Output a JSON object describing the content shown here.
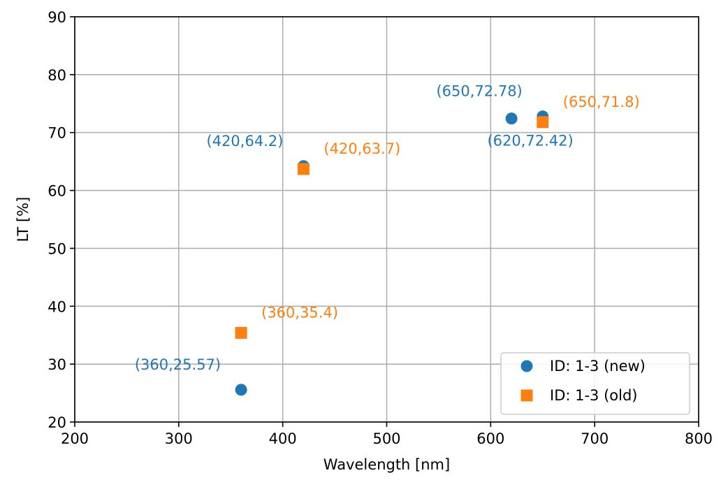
{
  "chart_data": {
    "type": "scatter",
    "xlabel": "Wavelength [nm]",
    "ylabel": "LT [%]",
    "xlim": [
      200,
      800
    ],
    "ylim": [
      20,
      90
    ],
    "xticks": [
      200,
      300,
      400,
      500,
      600,
      700,
      800
    ],
    "yticks": [
      20,
      30,
      40,
      50,
      60,
      70,
      80,
      90
    ],
    "grid": true,
    "legend_position": "bottom-right",
    "series": [
      {
        "name": "ID: 1-3 (new)",
        "marker": "circle",
        "color": "#1f77b4",
        "points": [
          {
            "x": 360,
            "y": 25.57
          },
          {
            "x": 420,
            "y": 64.2
          },
          {
            "x": 620,
            "y": 72.42
          },
          {
            "x": 650,
            "y": 72.78
          }
        ]
      },
      {
        "name": "ID: 1-3 (old)",
        "marker": "square",
        "color": "#ff7f0e",
        "points": [
          {
            "x": 360,
            "y": 35.4
          },
          {
            "x": 420,
            "y": 63.7
          },
          {
            "x": 650,
            "y": 71.8
          }
        ]
      }
    ],
    "annotations": [
      {
        "text": "(360,25.57)",
        "series": 0,
        "x": 360,
        "y": 25.57,
        "placement": "upper-left"
      },
      {
        "text": "(420,64.2)",
        "series": 0,
        "x": 420,
        "y": 64.2,
        "placement": "upper-left"
      },
      {
        "text": "(620,72.42)",
        "series": 0,
        "x": 620,
        "y": 72.42,
        "placement": "below"
      },
      {
        "text": "(650,72.78)",
        "series": 0,
        "x": 650,
        "y": 72.78,
        "placement": "upper-left"
      },
      {
        "text": "(360,35.4)",
        "series": 1,
        "x": 360,
        "y": 35.4,
        "placement": "upper-right"
      },
      {
        "text": "(420,63.7)",
        "series": 1,
        "x": 420,
        "y": 63.7,
        "placement": "upper-right"
      },
      {
        "text": "(650,71.8)",
        "series": 1,
        "x": 650,
        "y": 71.8,
        "placement": "upper-right"
      }
    ]
  }
}
